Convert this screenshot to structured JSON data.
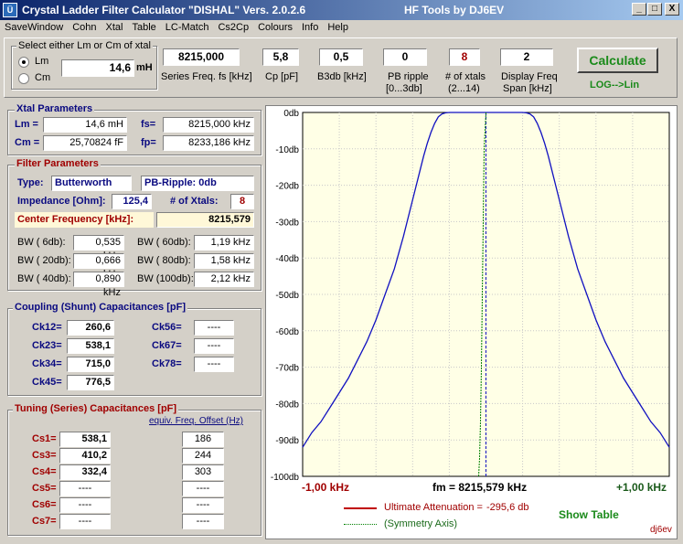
{
  "window": {
    "title": "Crystal Ladder Filter Calculator \"DISHAL\"  Vers. 2.0.2.6",
    "right_title": "HF Tools by DJ6EV",
    "icon": "app-icon",
    "min_label": "_",
    "max_label": "□",
    "close_label": "X"
  },
  "menu": [
    "SaveWindow",
    "Cohn",
    "Xtal",
    "Table",
    "LC-Match",
    "Cs2Cp",
    "Colours",
    "Info",
    "Help"
  ],
  "input": {
    "select_title": "Select either Lm or Cm of xtal",
    "lm_label": "Lm",
    "cm_label": "Cm",
    "lm_value": "14,6",
    "lm_unit": "mH",
    "series_freq_value": "8215,000",
    "series_freq_label": "Series Freq. fs [kHz]",
    "cp_value": "5,8",
    "cp_label": "Cp [pF]",
    "b3db_value": "0,5",
    "b3db_label": "B3db [kHz]",
    "pb_ripple_value": "0",
    "pb_ripple_label": "PB ripple",
    "pb_ripple_sub": "[0...3db]",
    "xtals_value": "8",
    "xtals_label": "# of xtals",
    "xtals_sub": "(2...14)",
    "span_value": "2",
    "span_label": "Display Freq",
    "span_sub": "Span [kHz]",
    "calculate_label": "Calculate",
    "log_lin_label": "LOG-->Lin"
  },
  "xtal_params": {
    "title": "Xtal Parameters",
    "lm_label": "Lm =",
    "lm_value": "14,6 mH",
    "cm_label": "Cm =",
    "cm_value": "25,70824  fF",
    "fs_label": "fs=",
    "fs_value": "8215,000 kHz",
    "fp_label": "fp=",
    "fp_value": "8233,186 kHz"
  },
  "filter_params": {
    "title": "Filter Parameters",
    "type_label": "Type:",
    "type_value": "Butterworth",
    "pb_ripple": "PB-Ripple: 0db",
    "impedance_label": "Impedance [Ohm]:",
    "impedance_value": "125,4",
    "xtals_label": "# of Xtals:",
    "xtals_value": "8",
    "center_label": "Center Frequency [kHz]:",
    "center_value": "8215,579",
    "bw": [
      {
        "label": "BW (  6db):",
        "value": "0,535 kHz",
        "label2": "BW ( 60db):",
        "value2": "1,19 kHz"
      },
      {
        "label": "BW ( 20db):",
        "value": "0,666 kHz",
        "label2": "BW ( 80db):",
        "value2": "1,58 kHz"
      },
      {
        "label": "BW ( 40db):",
        "value": "0,890 kHz",
        "label2": "BW (100db):",
        "value2": "2,12 kHz"
      }
    ]
  },
  "coupling": {
    "title": "Coupling (Shunt) Capacitances [pF]",
    "left": [
      {
        "label": "Ck12=",
        "value": "260,6"
      },
      {
        "label": "Ck23=",
        "value": "538,1"
      },
      {
        "label": "Ck34=",
        "value": "715,0"
      },
      {
        "label": "Ck45=",
        "value": "776,5"
      }
    ],
    "right": [
      {
        "label": "Ck56=",
        "value": "----"
      },
      {
        "label": "Ck67=",
        "value": "----"
      },
      {
        "label": "Ck78=",
        "value": "----"
      }
    ]
  },
  "tuning": {
    "title": "Tuning (Series) Capacitances [pF]",
    "offset_link": "equiv. Freq. Offset (Hz)",
    "rows": [
      {
        "label": "Cs1=",
        "value": "538,1",
        "offset": "186"
      },
      {
        "label": "Cs3=",
        "value": "410,2",
        "offset": "244"
      },
      {
        "label": "Cs4=",
        "value": "332,4",
        "offset": "303"
      },
      {
        "label": "Cs5=",
        "value": "----",
        "offset": "----"
      },
      {
        "label": "Cs6=",
        "value": "----",
        "offset": "----"
      },
      {
        "label": "Cs7=",
        "value": "----",
        "offset": "----"
      }
    ]
  },
  "chart_footer": {
    "left_freq": "-1,00 kHz",
    "center_freq": "fm = 8215,579 kHz",
    "right_freq": "+1,00 kHz",
    "legend_ultimate": "Ultimate Attenuation =",
    "ultimate_value": "-295,6 db",
    "legend_symmetry": "(Symmetry Axis)",
    "show_table": "Show Table",
    "credit": "dj6ev"
  },
  "colors": {
    "accent_red": "#a00000",
    "label_blue": "#0a0a80",
    "curve_blue": "#1010c0",
    "symmetry_green": "#008000",
    "chart_bg": "#ffffe6",
    "calc_green": "#1a8a1a"
  },
  "chart_data": {
    "type": "line",
    "title": "",
    "xlabel": "",
    "ylabel": "",
    "x_range_khz": [
      -1.0,
      1.0
    ],
    "ylim": [
      -100,
      0
    ],
    "y_ticks": [
      "0db",
      "-10db",
      "-20db",
      "-30db",
      "-40db",
      "-50db",
      "-60db",
      "-70db",
      "-80db",
      "-90db",
      "-100db"
    ],
    "grid": true,
    "series": [
      {
        "x": [
          -1.0,
          -0.95,
          -0.9,
          -0.85,
          -0.8,
          -0.75,
          -0.7,
          -0.65,
          -0.6,
          -0.55,
          -0.5,
          -0.45,
          -0.4,
          -0.38,
          -0.36,
          -0.34,
          -0.32,
          -0.3,
          -0.28,
          -0.26,
          -0.24,
          -0.22,
          -0.2,
          0.2,
          0.22,
          0.24,
          0.26,
          0.28,
          0.3,
          0.32,
          0.34,
          0.36,
          0.38,
          0.4,
          0.45,
          0.5,
          0.55,
          0.6,
          0.65,
          0.7,
          0.75,
          0.8,
          0.85,
          0.9,
          0.95,
          1.0
        ],
        "y": [
          -92,
          -88,
          -85,
          -81,
          -77,
          -73,
          -68,
          -63,
          -57,
          -50,
          -43,
          -34,
          -24,
          -20,
          -16,
          -12,
          -8.5,
          -5.5,
          -3,
          -1.2,
          -0.4,
          -0.1,
          0,
          0,
          -0.1,
          -0.4,
          -1.2,
          -3,
          -5.5,
          -8.5,
          -12,
          -16,
          -20,
          -24,
          -34,
          -43,
          -50,
          -57,
          -63,
          -68,
          -73,
          -77,
          -81,
          -85,
          -88,
          -92
        ]
      },
      {
        "x": [
          -0.04,
          -0.035,
          -0.03,
          -0.025,
          -0.02,
          -0.015,
          -0.01,
          0.0
        ],
        "y": [
          -100,
          -95,
          -85,
          -70,
          -50,
          -30,
          -10,
          0
        ]
      }
    ],
    "symmetry_x": 0.0
  }
}
